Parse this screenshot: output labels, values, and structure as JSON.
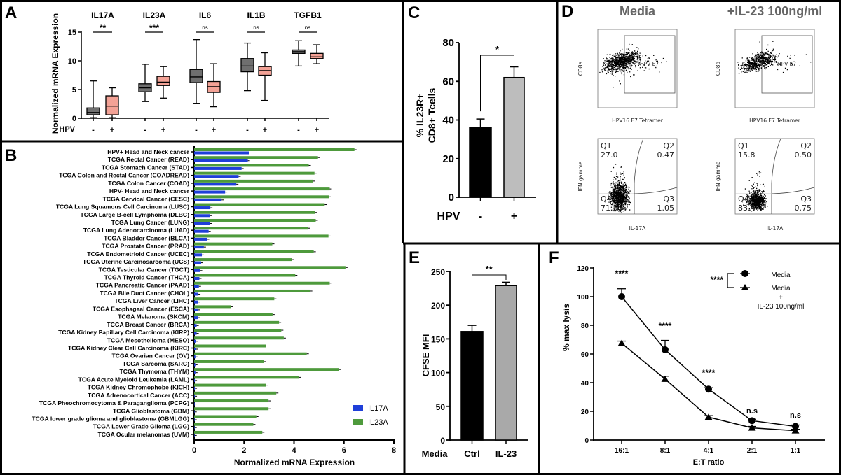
{
  "chart_data": [
    {
      "panel": "A",
      "type": "box",
      "ylabel": "Normalized mRNA Expression",
      "ylim": [
        0,
        15
      ],
      "yticks": [
        0,
        5,
        10,
        15
      ],
      "group_label": "HPV",
      "colors": {
        "neg": "#6f6f6f",
        "pos": "#f3a296"
      },
      "genes": [
        {
          "name": "IL17A",
          "sig": "**",
          "boxes": [
            {
              "hpv": "-",
              "min": 0.1,
              "q1": 0.6,
              "median": 1.0,
              "q3": 1.8,
              "max": 6.5
            },
            {
              "hpv": "+",
              "min": 0.1,
              "q1": 0.6,
              "median": 2.1,
              "q3": 3.9,
              "max": 5.3
            }
          ]
        },
        {
          "name": "IL23A",
          "sig": "***",
          "boxes": [
            {
              "hpv": "-",
              "min": 2.9,
              "q1": 4.6,
              "median": 5.3,
              "q3": 6.0,
              "max": 9.4
            },
            {
              "hpv": "+",
              "min": 3.5,
              "q1": 5.7,
              "median": 6.3,
              "q3": 7.3,
              "max": 9.0
            }
          ]
        },
        {
          "name": "IL6",
          "sig": "ns",
          "boxes": [
            {
              "hpv": "-",
              "min": 2.6,
              "q1": 6.2,
              "median": 7.2,
              "q3": 8.5,
              "max": 13.7
            },
            {
              "hpv": "+",
              "min": 2.0,
              "q1": 4.5,
              "median": 5.5,
              "q3": 6.4,
              "max": 9.5
            }
          ]
        },
        {
          "name": "IL1B",
          "sig": "ns",
          "boxes": [
            {
              "hpv": "-",
              "min": 4.8,
              "q1": 8.1,
              "median": 9.1,
              "q3": 10.4,
              "max": 13.1
            },
            {
              "hpv": "+",
              "min": 3.1,
              "q1": 7.5,
              "median": 8.3,
              "q3": 9.0,
              "max": 11.4
            }
          ]
        },
        {
          "name": "TGFB1",
          "sig": "ns",
          "boxes": [
            {
              "hpv": "-",
              "min": 9.1,
              "q1": 11.3,
              "median": 11.6,
              "q3": 11.9,
              "max": 13.5
            },
            {
              "hpv": "+",
              "min": 9.5,
              "q1": 10.4,
              "median": 10.7,
              "q3": 11.3,
              "max": 12.8
            }
          ]
        }
      ]
    },
    {
      "panel": "B",
      "type": "bar",
      "orientation": "horizontal",
      "xlabel": "Normalized mRNA Expression",
      "xlim": [
        0,
        8
      ],
      "xticks": [
        0,
        2,
        4,
        6,
        8
      ],
      "legend": "bottom-right",
      "categories": [
        "HPV+ Head and Neck cancer",
        "TCGA Rectal Cancer (READ)",
        "TCGA Stomach Cancer (STAD)",
        "TCGA Colon and Rectal Cancer (COADREAD)",
        "TCGA Colon Cancer (COAD)",
        "HPV- Head and Neck cancer",
        "TCGA Cervical Cancer (CESC)",
        "TCGA Lung Squamous Cell Carcinoma (LUSC)",
        "TCGA Large B-cell Lymphoma (DLBC)",
        "TCGA Lung Cancer (LUNG)",
        "TCGA Lung Adenocarcinoma (LUAD)",
        "TCGA Bladder Cancer (BLCA)",
        "TCGA Prostate Cancer (PRAD)",
        "TCGA Endometrioid Cancer (UCEC)",
        "TCGA Uterine Carcinosarcoma (UCS)",
        "TCGA Testicular Cancer (TGCT)",
        "TCGA Thyroid Cancer (THCA)",
        "TCGA Pancreatic Cancer (PAAD)",
        "TCGA Bile Duct Cancer (CHOL)",
        "TCGA Liver Cancer (LIHC)",
        "TCGA Esophageal Cancer (ESCA)",
        "TCGA Melanoma (SKCM)",
        "TCGA Breast Cancer (BRCA)",
        "TCGA Kidney Papillary Cell Carcinoma (KIRP)",
        "TCGA Mesothelioma (MESO)",
        "TCGA Kidney Clear Cell Carcinoma (KIRC)",
        "TCGA Ovarian Cancer (OV)",
        "TCGA Sarcoma (SARC)",
        "TCGA Thymoma (THYM)",
        "TCGA Acute Myeloid Leukemia (LAML)",
        "TCGA Kidney Chromophobe (KICH)",
        "TCGA Adrenocortical Cancer (ACC)",
        "TCGA Pheochromocytoma & Paraganglioma (PCPG)",
        "TCGA Glioblastoma (GBM)",
        "TCGA lower grade glioma and glioblastoma (GBMLGG)",
        "TCGA Lower Grade Glioma (LGG)",
        "TCGA Ocular melanomas (UVM)"
      ],
      "series": [
        {
          "name": "IL17A",
          "color": "#1f3fd9",
          "values": [
            2.19,
            2.15,
            1.9,
            1.78,
            1.69,
            1.24,
            1.1,
            0.65,
            0.62,
            0.62,
            0.58,
            0.52,
            0.39,
            0.31,
            0.28,
            0.24,
            0.21,
            0.19,
            0.17,
            0.15,
            0.15,
            0.15,
            0.1,
            0.1,
            0.08,
            0.06,
            0.05,
            0.05,
            0.05,
            0.03,
            0.03,
            0.03,
            0.02,
            0.02,
            0.02,
            0.02,
            0.02
          ]
        },
        {
          "name": "IL23A",
          "color": "#4e9a3c",
          "values": [
            6.42,
            4.96,
            4.59,
            4.82,
            4.77,
            5.43,
            5.41,
            5.23,
            4.85,
            4.87,
            4.56,
            5.38,
            3.13,
            4.79,
            3.91,
            6.06,
            4.05,
            5.43,
            4.65,
            3.21,
            1.46,
            3.14,
            3.4,
            3.49,
            3.59,
            2.89,
            4.51,
            2.79,
            5.79,
            4.2,
            2.88,
            3.29,
            2.98,
            2.98,
            2.49,
            2.37,
            2.73
          ]
        }
      ]
    },
    {
      "panel": "C",
      "type": "bar",
      "group_label": "HPV",
      "categories": [
        "-",
        "+"
      ],
      "values": [
        36,
        62
      ],
      "errors": [
        4.5,
        5.5
      ],
      "colors": [
        "#000000",
        "#bdbdbd"
      ],
      "ylabel": [
        "% IL23R+",
        "CD8+ Tcells"
      ],
      "ylim": [
        0,
        80
      ],
      "yticks": [
        0,
        20,
        40,
        60,
        80
      ],
      "significance": "*"
    },
    {
      "panel": "D",
      "type": "scatter",
      "top_xlabel": "HPV16 E7 Tetramer",
      "top_ylabel": "CD8a",
      "bottom_xlabel": "IL-17A",
      "bottom_ylabel": "IFN gamma",
      "conditions": [
        {
          "title": "Media",
          "gate_label": "HPV E7",
          "quadrants": [
            {
              "name": "Q1",
              "value": "27.0"
            },
            {
              "name": "Q2",
              "value": "0.47"
            },
            {
              "name": "Q3",
              "value": "1.05"
            },
            {
              "name": "Q4",
              "value": "71.5"
            }
          ]
        },
        {
          "title": "+IL-23 100ng/ml",
          "gate_label": "HPV E7",
          "quadrants": [
            {
              "name": "Q1",
              "value": "15.8"
            },
            {
              "name": "Q2",
              "value": "0.50"
            },
            {
              "name": "Q3",
              "value": "0.75"
            },
            {
              "name": "Q4",
              "value": "83.4"
            }
          ]
        }
      ]
    },
    {
      "panel": "E",
      "type": "bar",
      "group_label": "Media",
      "categories": [
        "Ctrl",
        "IL-23"
      ],
      "values": [
        161,
        229
      ],
      "errors": [
        9,
        5
      ],
      "colors": [
        "#000000",
        "#a9a9a9"
      ],
      "ylabel": "CFSE MFI",
      "ylim": [
        0,
        250
      ],
      "yticks": [
        0,
        50,
        100,
        150,
        200,
        250
      ],
      "significance": "**"
    },
    {
      "panel": "F",
      "type": "line",
      "xlabel": "E:T ratio",
      "ylabel": "% max lysis",
      "ylim": [
        0,
        120
      ],
      "yticks": [
        0,
        20,
        40,
        60,
        80,
        100,
        120
      ],
      "categories": [
        "16:1",
        "8:1",
        "4:1",
        "2:1",
        "1:1"
      ],
      "annotations": [
        "****",
        "****",
        "****",
        "n.s",
        "n.s"
      ],
      "legend_significance": "****",
      "legend": "top-right",
      "series": [
        {
          "name": "Media",
          "marker": "circle",
          "legend_lines": [
            "Media"
          ],
          "values": [
            100,
            63,
            35.5,
            13.5,
            9.5
          ],
          "errors": [
            5.5,
            6.5,
            1,
            1,
            1
          ]
        },
        {
          "name": "Media + IL-23 100ng/ml",
          "marker": "triangle",
          "legend_lines": [
            "Media",
            "+",
            "IL-23 100ng/ml"
          ],
          "values": [
            67.5,
            42.5,
            16,
            8.5,
            6.5
          ],
          "errors": [
            1.5,
            2,
            1,
            1,
            1
          ]
        }
      ]
    }
  ]
}
